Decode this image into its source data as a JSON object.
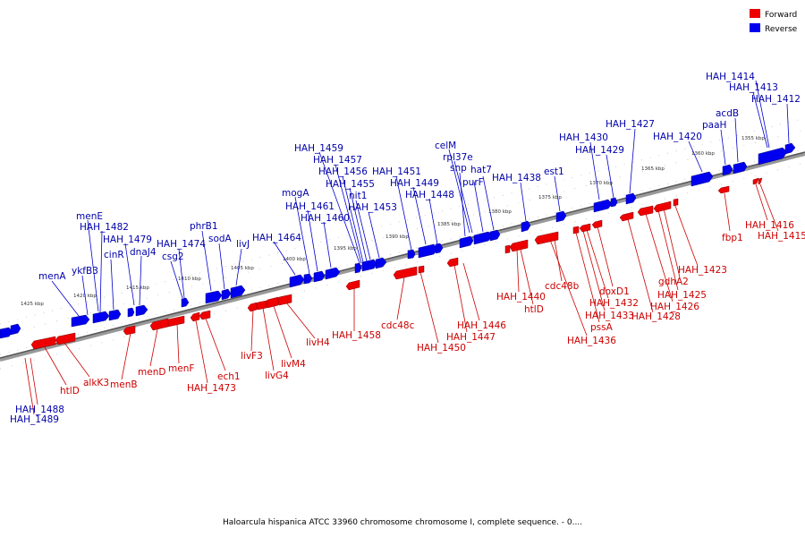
{
  "caption": "Haloarcula hispanica ATCC 33960 chromosome chromosome I, complete sequence. - 0....",
  "legend": {
    "forward": {
      "label": "Forward",
      "color": "#ee0000"
    },
    "reverse": {
      "label": "Reverse",
      "color": "#0000ee"
    }
  },
  "kbp_labels": [
    "1355 kbp",
    "1360 kbp",
    "1365 kbp",
    "1370 kbp",
    "1375 kbp",
    "1380 kbp",
    "1385 kbp",
    "1390 kbp",
    "1395 kbp",
    "1400 kbp",
    "1405 kbp",
    "1410 kbp",
    "1415 kbp",
    "1420 kbp",
    "1425 kbp"
  ],
  "reverse_genes": [
    "HAH_1414",
    "HAH_1413",
    "HAH_1412",
    "acdB",
    "paaH",
    "HAH_1420",
    "HAH_1427",
    "HAH_1430",
    "HAH_1429",
    "est1",
    "HAH_1438",
    "hat7",
    "purF",
    "snp",
    "rpl37e",
    "celM",
    "HAH_1451",
    "HAH_1449",
    "HAH_1448",
    "HAH_1459",
    "HAH_1457",
    "HAH_1456",
    "HAH_1455",
    "nit1",
    "HAH_1453",
    "mogA",
    "HAH_1461",
    "HAH_1460",
    "HAH_1464",
    "phrB1",
    "sodA",
    "livJ",
    "HAH_1474",
    "csg2",
    "HAH_1479",
    "dnaJ4",
    "menE",
    "HAH_1482",
    "cinR",
    "ykfB3",
    "menA"
  ],
  "forward_genes": [
    "fbp1",
    "HAH_1416",
    "HAH_1415",
    "HAH_1423",
    "gdhA2",
    "HAH_1425",
    "HAH_1426",
    "HAH_1428",
    "doxD1",
    "HAH_1432",
    "HAH_1433",
    "pssA",
    "HAH_1436",
    "cdc48b",
    "HAH_1440",
    "htlD",
    "HAH_1446",
    "HAH_1447",
    "HAH_1450",
    "cdc48c",
    "HAH_1458",
    "livH4",
    "livM4",
    "livG4",
    "livF3",
    "ech1",
    "HAH_1473",
    "menF",
    "menD",
    "menB",
    "alkK3",
    "htlD",
    "HAH_1488",
    "HAH_1489"
  ]
}
